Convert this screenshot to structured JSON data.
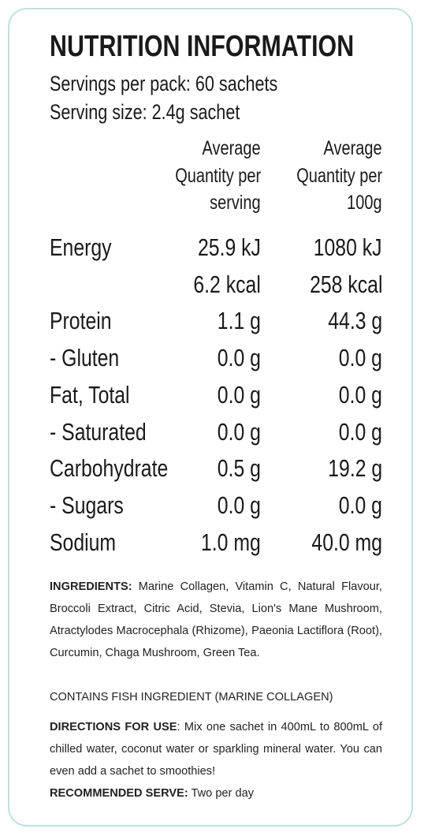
{
  "header": {
    "title": "NUTRITION INFORMATION",
    "servings_per_pack": "Servings per pack:  60 sachets",
    "serving_size": "Serving size:  2.4g sachet"
  },
  "table": {
    "columns": [
      [
        "Average",
        "Quantity per",
        "serving"
      ],
      [
        "Average",
        "Quantity per",
        "100g"
      ]
    ],
    "rows": [
      {
        "label": "Energy",
        "per_serving": [
          "25.9 kJ",
          "6.2 kcal"
        ],
        "per_100g": [
          "1080 kJ",
          "258 kcal"
        ]
      },
      {
        "label": "Protein",
        "per_serving": [
          "1.1 g"
        ],
        "per_100g": [
          "44.3 g"
        ]
      },
      {
        "label": "- Gluten",
        "per_serving": [
          "0.0 g"
        ],
        "per_100g": [
          "0.0 g"
        ]
      },
      {
        "label": "Fat, Total",
        "per_serving": [
          "0.0 g"
        ],
        "per_100g": [
          "0.0 g"
        ]
      },
      {
        "label": "- Saturated",
        "per_serving": [
          "0.0 g"
        ],
        "per_100g": [
          "0.0 g"
        ]
      },
      {
        "label": "Carbohydrate",
        "per_serving": [
          "0.5 g"
        ],
        "per_100g": [
          "19.2 g"
        ]
      },
      {
        "label": "- Sugars",
        "per_serving": [
          "0.0 g"
        ],
        "per_100g": [
          "0.0 g"
        ]
      },
      {
        "label": "Sodium",
        "per_serving": [
          "1.0 mg"
        ],
        "per_100g": [
          "40.0 mg"
        ]
      }
    ]
  },
  "ingredients": {
    "label": "INGREDIENTS:",
    "text": "Marine Collagen, Vitamin C, Natural Flavour, Broccoli Extract, Citric Acid, Stevia, Lion's Mane Mushroom, Atractylodes Macrocephala (Rhizome), Paeonia Lactiflora (Root), Curcumin, Chaga Mushroom, Green Tea.",
    "allergen": "CONTAINS FISH INGREDIENT (MARINE COLLAGEN)"
  },
  "directions": {
    "label": "DIRECTIONS FOR USE",
    "text": ": Mix one sachet in 400mL to 800mL of chilled water, coconut water or sparkling mineral water. You can even add a sachet to smoothies!"
  },
  "recommended": {
    "label": "RECOMMENDED SERVE:",
    "text": "Two per day"
  }
}
